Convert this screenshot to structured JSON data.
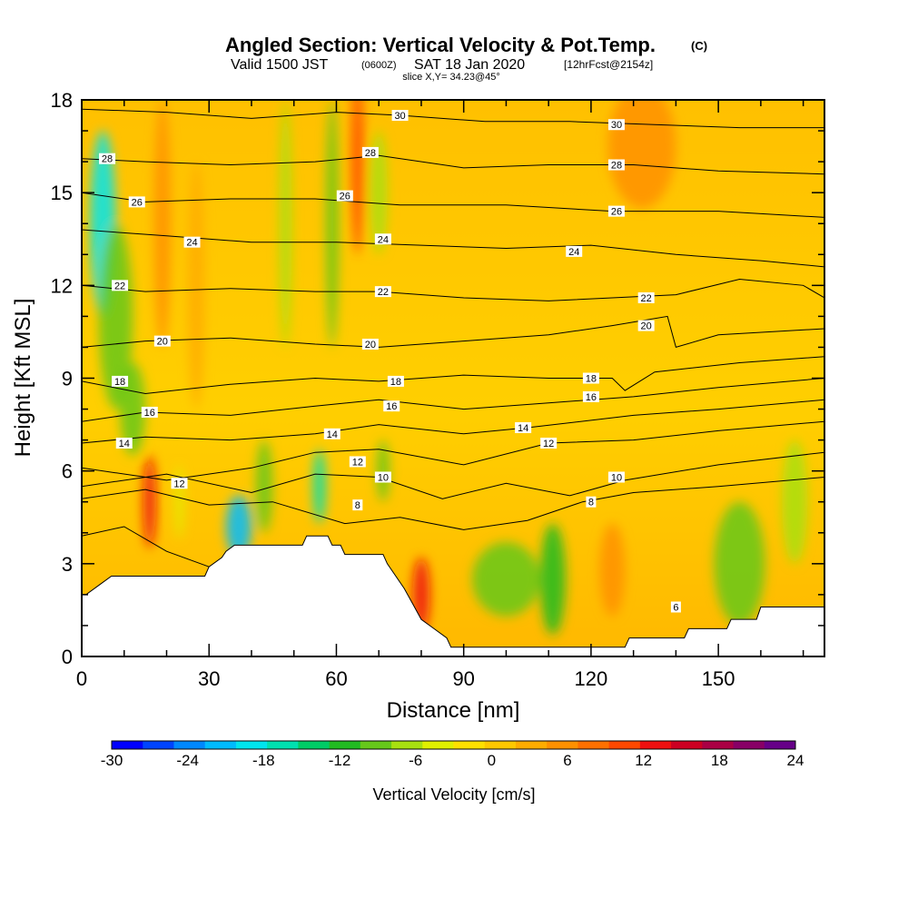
{
  "header": {
    "title": "Angled Section: Vertical Velocity & Pot.Temp.",
    "title_suffix": "(C)",
    "valid_prefix": "Valid 1500 JST",
    "valid_zulu": "(0600Z)",
    "valid_date": "SAT 18 Jan 2020",
    "forecast": "[12hrFcst@2154z]",
    "slice": "slice X,Y= 34.23@45°"
  },
  "chart_data": {
    "type": "heatmap",
    "xlabel": "Distance [nm]",
    "ylabel": "Height [Kft MSL]",
    "xlim": [
      0,
      175
    ],
    "ylim": [
      0,
      18
    ],
    "x_ticks": [
      "0",
      "30",
      "60",
      "90",
      "120",
      "150"
    ],
    "x_tick_values": [
      0,
      30,
      60,
      90,
      120,
      150
    ],
    "y_ticks": [
      "0",
      "3",
      "6",
      "9",
      "12",
      "15",
      "18"
    ],
    "y_tick_values": [
      0,
      3,
      6,
      9,
      12,
      15,
      18
    ],
    "colorbar": {
      "label": "Vertical Velocity [cm/s]",
      "range": [
        -30,
        24
      ],
      "tick_labels": [
        "-30",
        "-24",
        "-18",
        "-12",
        "-6",
        "0",
        "6",
        "12",
        "18",
        "24"
      ],
      "tick_values": [
        -30,
        -24,
        -18,
        -12,
        -6,
        0,
        6,
        12,
        18,
        24
      ],
      "colors": [
        "#0000ff",
        "#0044ff",
        "#0088ff",
        "#00bbff",
        "#00e5ee",
        "#00e0b0",
        "#00cc66",
        "#22bb22",
        "#66c81a",
        "#a8e010",
        "#e0f000",
        "#ffe000",
        "#ffc800",
        "#ffac00",
        "#ff9000",
        "#ff7000",
        "#ff4800",
        "#ee1010",
        "#cc0022",
        "#aa0044",
        "#880066",
        "#660088"
      ]
    },
    "terrain": [
      [
        0,
        2.0
      ],
      [
        1,
        2.0
      ],
      [
        4,
        2.3
      ],
      [
        7,
        2.6
      ],
      [
        15,
        2.6
      ],
      [
        29,
        2.6
      ],
      [
        30,
        2.9
      ],
      [
        33,
        3.2
      ],
      [
        34,
        3.4
      ],
      [
        36,
        3.6
      ],
      [
        52,
        3.6
      ],
      [
        53,
        3.9
      ],
      [
        58,
        3.9
      ],
      [
        59,
        3.6
      ],
      [
        61,
        3.6
      ],
      [
        62,
        3.3
      ],
      [
        71,
        3.3
      ],
      [
        72,
        3.0
      ],
      [
        74,
        2.6
      ],
      [
        76,
        2.2
      ],
      [
        78,
        1.7
      ],
      [
        80,
        1.2
      ],
      [
        83,
        0.9
      ],
      [
        86,
        0.6
      ],
      [
        87,
        0.3
      ],
      [
        128,
        0.3
      ],
      [
        129,
        0.6
      ],
      [
        142,
        0.6
      ],
      [
        143,
        0.9
      ],
      [
        152,
        0.9
      ],
      [
        153,
        1.2
      ],
      [
        159,
        1.2
      ],
      [
        160,
        1.6
      ],
      [
        175,
        1.6
      ]
    ],
    "velocity_cells": [
      {
        "x": 5,
        "y": 14,
        "sx": 3,
        "sy": 3,
        "w": -20
      },
      {
        "x": 8,
        "y": 11,
        "sx": 4,
        "sy": 3,
        "w": -8
      },
      {
        "x": 12,
        "y": 8,
        "sx": 3,
        "sy": 1.5,
        "w": -10
      },
      {
        "x": 16,
        "y": 5,
        "sx": 1.5,
        "sy": 1.5,
        "w": 12
      },
      {
        "x": 19,
        "y": 14,
        "sx": 2,
        "sy": 4,
        "w": 6
      },
      {
        "x": 23,
        "y": 5,
        "sx": 1,
        "sy": 1.2,
        "w": -4
      },
      {
        "x": 27,
        "y": 12,
        "sx": 2,
        "sy": 4,
        "w": 4
      },
      {
        "x": 37,
        "y": 4.2,
        "sx": 3,
        "sy": 1,
        "w": -22
      },
      {
        "x": 43,
        "y": 5.5,
        "sx": 2,
        "sy": 1.5,
        "w": -10
      },
      {
        "x": 48,
        "y": 14,
        "sx": 1.5,
        "sy": 4,
        "w": -6
      },
      {
        "x": 56,
        "y": 5.5,
        "sx": 1.5,
        "sy": 1.2,
        "w": -16
      },
      {
        "x": 59,
        "y": 14,
        "sx": 1.5,
        "sy": 4,
        "w": -8
      },
      {
        "x": 65,
        "y": 16,
        "sx": 1.5,
        "sy": 3,
        "w": 10
      },
      {
        "x": 70,
        "y": 15,
        "sx": 2,
        "sy": 2,
        "w": -6
      },
      {
        "x": 71,
        "y": 6,
        "sx": 1.5,
        "sy": 1,
        "w": -10
      },
      {
        "x": 80,
        "y": 2,
        "sx": 2,
        "sy": 1.2,
        "w": 14
      },
      {
        "x": 100,
        "y": 2.5,
        "sx": 8,
        "sy": 1.2,
        "w": -10
      },
      {
        "x": 111,
        "y": 2.5,
        "sx": 3,
        "sy": 1.8,
        "w": -12
      },
      {
        "x": 125,
        "y": 2.8,
        "sx": 3,
        "sy": 1.5,
        "w": 6
      },
      {
        "x": 132,
        "y": 16.5,
        "sx": 8,
        "sy": 2,
        "w": 6
      },
      {
        "x": 155,
        "y": 3,
        "sx": 6,
        "sy": 2,
        "w": -8
      },
      {
        "x": 168,
        "y": 5,
        "sx": 3,
        "sy": 2,
        "w": -6
      }
    ],
    "isotherms": [
      {
        "label": "6",
        "points": [
          [
            0,
            3.9
          ],
          [
            10,
            4.2
          ],
          [
            20,
            3.4
          ],
          [
            30,
            2.9
          ]
        ],
        "label_at": [
          140,
          1.6
        ]
      },
      {
        "label": "8",
        "points": [
          [
            0,
            5.1
          ],
          [
            15,
            5.4
          ],
          [
            30,
            4.9
          ],
          [
            45,
            5.0
          ],
          [
            62,
            4.3
          ],
          [
            75,
            4.5
          ],
          [
            90,
            4.1
          ],
          [
            105,
            4.4
          ],
          [
            118,
            5.0
          ],
          [
            130,
            5.3
          ],
          [
            150,
            5.5
          ],
          [
            175,
            5.8
          ]
        ],
        "label_at": [
          65,
          4.9
        ]
      },
      {
        "label": "10",
        "points": [
          [
            0,
            5.5
          ],
          [
            20,
            5.9
          ],
          [
            40,
            5.3
          ],
          [
            55,
            5.9
          ],
          [
            70,
            5.8
          ],
          [
            85,
            5.1
          ],
          [
            100,
            5.6
          ],
          [
            115,
            5.2
          ],
          [
            128,
            5.7
          ],
          [
            150,
            6.2
          ],
          [
            175,
            6.6
          ]
        ],
        "label_at": [
          126,
          5.8
        ]
      },
      {
        "label": "12",
        "points": [
          [
            0,
            6.1
          ],
          [
            20,
            5.7
          ],
          [
            40,
            6.1
          ],
          [
            55,
            6.6
          ],
          [
            70,
            6.7
          ],
          [
            90,
            6.2
          ],
          [
            110,
            6.9
          ],
          [
            130,
            7.0
          ],
          [
            150,
            7.3
          ],
          [
            175,
            7.6
          ]
        ],
        "label_at": [
          23,
          5.6
        ]
      },
      {
        "label": "14",
        "points": [
          [
            0,
            6.9
          ],
          [
            15,
            7.1
          ],
          [
            35,
            7.0
          ],
          [
            55,
            7.2
          ],
          [
            70,
            7.5
          ],
          [
            90,
            7.2
          ],
          [
            105,
            7.4
          ],
          [
            130,
            7.8
          ],
          [
            150,
            8.0
          ],
          [
            175,
            8.3
          ]
        ],
        "label_at": [
          10,
          6.9
        ]
      },
      {
        "label": "16",
        "points": [
          [
            0,
            7.6
          ],
          [
            15,
            7.9
          ],
          [
            35,
            7.8
          ],
          [
            55,
            8.1
          ],
          [
            70,
            8.3
          ],
          [
            90,
            8.0
          ],
          [
            110,
            8.2
          ],
          [
            130,
            8.4
          ],
          [
            150,
            8.7
          ],
          [
            175,
            9.0
          ]
        ],
        "label_at": [
          16,
          7.9
        ]
      },
      {
        "label": "18",
        "points": [
          [
            0,
            8.9
          ],
          [
            15,
            8.5
          ],
          [
            35,
            8.8
          ],
          [
            55,
            9.0
          ],
          [
            70,
            8.9
          ],
          [
            90,
            9.1
          ],
          [
            110,
            9.0
          ],
          [
            125,
            9.0
          ],
          [
            128,
            8.6
          ],
          [
            135,
            9.2
          ],
          [
            155,
            9.5
          ],
          [
            175,
            9.7
          ]
        ],
        "label_at": [
          74,
          8.9
        ]
      },
      {
        "label": "20",
        "points": [
          [
            0,
            10.0
          ],
          [
            15,
            10.2
          ],
          [
            35,
            10.3
          ],
          [
            55,
            10.1
          ],
          [
            70,
            10.0
          ],
          [
            90,
            10.2
          ],
          [
            110,
            10.4
          ],
          [
            125,
            10.7
          ],
          [
            138,
            11.0
          ],
          [
            140,
            10.0
          ],
          [
            150,
            10.4
          ],
          [
            175,
            10.6
          ]
        ],
        "label_at": [
          19,
          10.2
        ]
      },
      {
        "label": "22",
        "points": [
          [
            0,
            12.0
          ],
          [
            15,
            11.8
          ],
          [
            35,
            11.9
          ],
          [
            55,
            11.8
          ],
          [
            70,
            11.8
          ],
          [
            90,
            11.6
          ],
          [
            110,
            11.5
          ],
          [
            125,
            11.6
          ],
          [
            140,
            11.7
          ],
          [
            155,
            12.2
          ],
          [
            170,
            12.0
          ],
          [
            175,
            11.6
          ]
        ],
        "label_at": [
          71,
          11.8
        ]
      },
      {
        "label": "24",
        "points": [
          [
            0,
            13.8
          ],
          [
            20,
            13.6
          ],
          [
            40,
            13.4
          ],
          [
            60,
            13.4
          ],
          [
            80,
            13.3
          ],
          [
            100,
            13.2
          ],
          [
            120,
            13.3
          ],
          [
            140,
            13.0
          ],
          [
            160,
            12.8
          ],
          [
            175,
            12.6
          ]
        ],
        "label_at": [
          26,
          13.4
        ]
      },
      {
        "label": "26",
        "points": [
          [
            0,
            15.0
          ],
          [
            15,
            14.7
          ],
          [
            35,
            14.8
          ],
          [
            55,
            14.8
          ],
          [
            75,
            14.6
          ],
          [
            100,
            14.6
          ],
          [
            125,
            14.4
          ],
          [
            150,
            14.4
          ],
          [
            175,
            14.2
          ]
        ],
        "label_at": [
          13,
          14.7
        ]
      },
      {
        "label": "28",
        "points": [
          [
            0,
            16.1
          ],
          [
            15,
            16.0
          ],
          [
            35,
            15.9
          ],
          [
            55,
            16.0
          ],
          [
            70,
            16.2
          ],
          [
            90,
            15.8
          ],
          [
            110,
            15.9
          ],
          [
            130,
            15.9
          ],
          [
            150,
            15.7
          ],
          [
            175,
            15.6
          ]
        ],
        "label_at": [
          6,
          16.1
        ]
      },
      {
        "label": "30",
        "points": [
          [
            0,
            17.7
          ],
          [
            20,
            17.6
          ],
          [
            40,
            17.4
          ],
          [
            60,
            17.6
          ],
          [
            75,
            17.5
          ],
          [
            95,
            17.3
          ],
          [
            115,
            17.3
          ],
          [
            135,
            17.2
          ],
          [
            155,
            17.1
          ],
          [
            175,
            17.1
          ]
        ],
        "label_at": [
          75,
          17.5
        ]
      }
    ],
    "extra_labels": [
      {
        "label": "30",
        "at": [
          126,
          17.2
        ]
      },
      {
        "label": "28",
        "at": [
          68,
          16.3
        ]
      },
      {
        "label": "28",
        "at": [
          126,
          15.9
        ]
      },
      {
        "label": "26",
        "at": [
          62,
          14.9
        ]
      },
      {
        "label": "26",
        "at": [
          126,
          14.4
        ]
      },
      {
        "label": "24",
        "at": [
          71,
          13.5
        ]
      },
      {
        "label": "24",
        "at": [
          116,
          13.1
        ]
      },
      {
        "label": "22",
        "at": [
          9,
          12.0
        ]
      },
      {
        "label": "22",
        "at": [
          133,
          11.6
        ]
      },
      {
        "label": "20",
        "at": [
          68,
          10.1
        ]
      },
      {
        "label": "20",
        "at": [
          133,
          10.7
        ]
      },
      {
        "label": "18",
        "at": [
          9,
          8.9
        ]
      },
      {
        "label": "18",
        "at": [
          120,
          9.0
        ]
      },
      {
        "label": "16",
        "at": [
          73,
          8.1
        ]
      },
      {
        "label": "16",
        "at": [
          120,
          8.4
        ]
      },
      {
        "label": "14",
        "at": [
          59,
          7.2
        ]
      },
      {
        "label": "14",
        "at": [
          104,
          7.4
        ]
      },
      {
        "label": "12",
        "at": [
          65,
          6.3
        ]
      },
      {
        "label": "12",
        "at": [
          110,
          6.9
        ]
      },
      {
        "label": "10",
        "at": [
          71,
          5.8
        ]
      },
      {
        "label": "8",
        "at": [
          120,
          5.0
        ]
      }
    ]
  }
}
